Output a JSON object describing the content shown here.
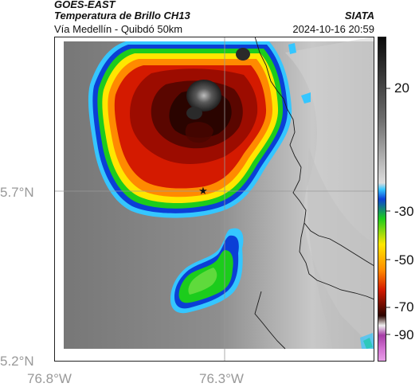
{
  "header": {
    "satellite": "GOES-EAST",
    "product": "Temperatura de Brillo CH13",
    "region": "Vía Medellín - Quibdó 50km",
    "organization": "SIATA",
    "datetime": "2024-10-16 20:59"
  },
  "map": {
    "y_axis_labels": [
      "5.7°N",
      "5.2°N"
    ],
    "x_axis_labels": [
      "76.8°W",
      "76.3°W"
    ],
    "markers": [
      "star-marker"
    ]
  },
  "colorbar": {
    "ticks": [
      "20",
      "-30",
      "-50",
      "-70",
      "-90"
    ]
  },
  "colors": {
    "cold_core": "#2a2a2a",
    "red": "#d41a00",
    "orange": "#ff8a00",
    "yellow": "#ffe600",
    "green": "#1ccc1c",
    "blue": "#0b3fd6",
    "cyan": "#35c6ff"
  }
}
